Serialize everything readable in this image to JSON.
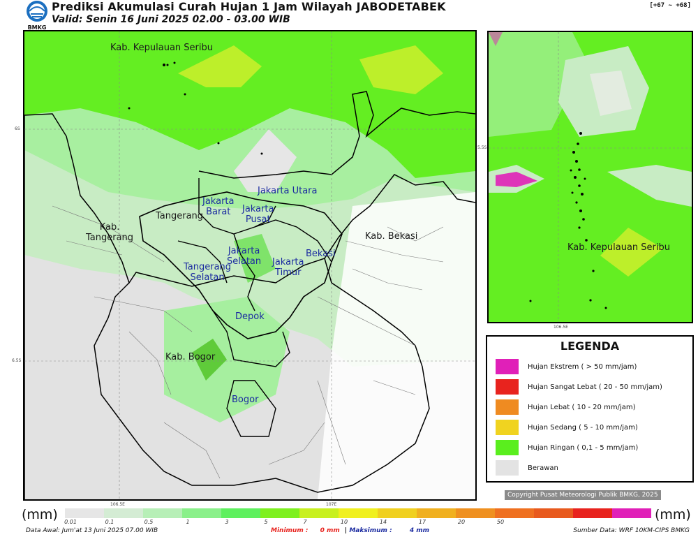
{
  "header": {
    "logo_text": "BMKG",
    "title": "Prediksi Akumulasi Curah Hujan 1 Jam Wilayah JABODETABEK",
    "subtitle": "Valid: Senin 16 Juni 2025 02.00 - 03.00 WIB",
    "lead_time": "[+67 ~ +68]"
  },
  "main_map": {
    "labels": [
      {
        "text": "Kab. Kepulauan Seribu",
        "style": "dark"
      },
      {
        "text": "Jakarta Utara",
        "style": "blue"
      },
      {
        "text": "Jakarta\nBarat",
        "style": "blue"
      },
      {
        "text": "Jakarta\nPusat",
        "style": "blue"
      },
      {
        "text": "Tangerang",
        "style": "dark"
      },
      {
        "text": "Kab.\nTangerang",
        "style": "dark"
      },
      {
        "text": "Jakarta\nSelatan",
        "style": "blue"
      },
      {
        "text": "Jakarta\nTimur",
        "style": "blue"
      },
      {
        "text": "Bekasi",
        "style": "blue"
      },
      {
        "text": "Kab. Bekasi",
        "style": "dark"
      },
      {
        "text": "Tangerang\nSelatan",
        "style": "blue"
      },
      {
        "text": "Depok",
        "style": "blue"
      },
      {
        "text": "Kab. Bogor",
        "style": "dark"
      },
      {
        "text": "Bogor",
        "style": "blue"
      }
    ],
    "coords": {
      "lat_top": "6S",
      "lat_bottom": "6.5S",
      "lon_left": "106.5E",
      "lon_right": "107E"
    }
  },
  "inset_map": {
    "label": "Kab. Kepulauan Seribu",
    "coords": {
      "lat": "5.5S",
      "lon": "106.5E"
    }
  },
  "legend": {
    "title": "LEGENDA",
    "items": [
      {
        "label": "Hujan Ekstrem ( > 50 mm/jam)",
        "color": "#e020b8"
      },
      {
        "label": "Hujan Sangat Lebat ( 20 - 50 mm/jam)",
        "color": "#e8231e"
      },
      {
        "label": "Hujan Lebat ( 10 - 20 mm/jam)",
        "color": "#ef8b21"
      },
      {
        "label": "Hujan Sedang ( 5 - 10 mm/jam)",
        "color": "#f0d320"
      },
      {
        "label": "Hujan Ringan ( 0,1 - 5 mm/jam)",
        "color": "#5aee1e"
      },
      {
        "label": "Berawan",
        "color": "#e3e3e3"
      }
    ]
  },
  "copyright": "Copyright Pusat Meteorologi Publik BMKG, 2025",
  "scale": {
    "unit_left": "(mm)",
    "unit_right": "(mm)",
    "colors": [
      "#e6e6e6",
      "#d4ecd4",
      "#b7efb7",
      "#8af08a",
      "#5ff05f",
      "#7ef020",
      "#c8f020",
      "#f0f020",
      "#f0d020",
      "#f0b020",
      "#ef9020",
      "#ef7020",
      "#e85a1e",
      "#e8231e",
      "#e020b8"
    ],
    "ticks": [
      "0.01",
      "0.1",
      "0.5",
      "1",
      "3",
      "5",
      "7",
      "10",
      "14",
      "17",
      "20",
      "50"
    ]
  },
  "footer": {
    "data_awal": "Data Awal: Jum'at 13 Juni 2025 07.00 WIB",
    "minimum_label": "Minimum :",
    "minimum_value": "0 mm",
    "separator": "|",
    "maximum_label": "Maksimum :",
    "maximum_value": "4 mm",
    "source": "Sumber Data: WRF 10KM-CIPS BMKG"
  }
}
